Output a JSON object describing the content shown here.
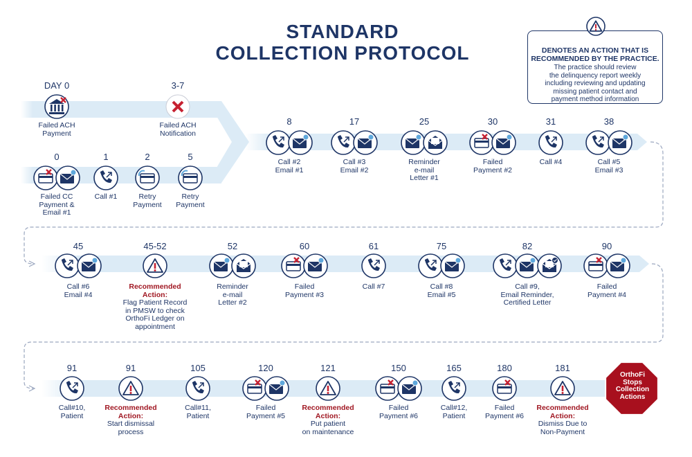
{
  "title": {
    "line1": "STANDARD",
    "line2": "COLLECTION PROTOCOL"
  },
  "legend": {
    "title_line1": "DENOTES AN ACTION THAT IS",
    "title_line2": "RECOMMENDED BY THE PRACTICE.",
    "body": [
      "The practice should review",
      "the delinquency report weekly",
      "including reviewing and updating",
      "missing patient contact and",
      "payment method information"
    ],
    "icon": "warning-icon"
  },
  "colors": {
    "navy": "#1e3566",
    "band": "#dcebf6",
    "recommended": "#a01722",
    "icon_ring": "#1e3566",
    "stop": "#a8101e"
  },
  "ach_path": [
    {
      "day": "DAY 0",
      "icons": [
        "bank-fail-icon"
      ],
      "label": [
        "Failed ACH",
        "Payment"
      ]
    },
    {
      "day": "3-7",
      "icons": [
        "red-x-icon"
      ],
      "label": [
        "Failed ACH",
        "Notification"
      ]
    }
  ],
  "cc_path": [
    {
      "day": "0",
      "icons": [
        "card-fail-icon",
        "email-icon"
      ],
      "label": [
        "Failed CC",
        "Payment &",
        "Email #1"
      ]
    },
    {
      "day": "1",
      "icons": [
        "call-icon"
      ],
      "label": [
        "Call #1"
      ]
    },
    {
      "day": "2",
      "icons": [
        "card-retry-icon"
      ],
      "label": [
        "Retry",
        "Payment"
      ]
    },
    {
      "day": "5",
      "icons": [
        "card-retry-icon"
      ],
      "label": [
        "Retry",
        "Payment"
      ]
    }
  ],
  "row1": [
    {
      "day": "8",
      "icons": [
        "call-icon",
        "email-icon"
      ],
      "label": [
        "Call #2",
        "Email #1"
      ]
    },
    {
      "day": "17",
      "icons": [
        "call-icon",
        "email-icon"
      ],
      "label": [
        "Call #3",
        "Email #2"
      ]
    },
    {
      "day": "25",
      "icons": [
        "email-icon",
        "letter-icon"
      ],
      "label": [
        "Reminder",
        "e-mail",
        "Letter #1"
      ]
    },
    {
      "day": "30",
      "icons": [
        "card-fail-icon",
        "email-icon"
      ],
      "label": [
        "Failed",
        "Payment #2"
      ]
    },
    {
      "day": "31",
      "icons": [
        "call-icon"
      ],
      "label": [
        "Call #4"
      ]
    },
    {
      "day": "38",
      "icons": [
        "call-icon",
        "email-icon"
      ],
      "label": [
        "Call #5",
        "Email #3"
      ]
    }
  ],
  "row2": [
    {
      "day": "45",
      "icons": [
        "call-icon",
        "email-icon"
      ],
      "label": [
        "Call #6",
        "Email #4"
      ]
    },
    {
      "day": "45-52",
      "icons": [
        "warning-icon"
      ],
      "rec": [
        "Recommended",
        "Action:"
      ],
      "label": [
        "Flag Patient Record",
        "in  PMSW to check",
        "OrthoFi Ledger on",
        "appointment"
      ]
    },
    {
      "day": "52",
      "icons": [
        "email-icon",
        "letter-icon"
      ],
      "label": [
        "Reminder",
        "e-mail",
        "Letter #2"
      ]
    },
    {
      "day": "60",
      "icons": [
        "card-fail-icon",
        "email-icon"
      ],
      "label": [
        "Failed",
        "Payment #3"
      ]
    },
    {
      "day": "61",
      "icons": [
        "call-icon"
      ],
      "label": [
        "Call #7"
      ]
    },
    {
      "day": "75",
      "icons": [
        "call-icon",
        "email-icon"
      ],
      "label": [
        "Call #8",
        "Email #5"
      ]
    },
    {
      "day": "82",
      "icons": [
        "call-icon",
        "email-icon",
        "certified-letter-icon"
      ],
      "label": [
        "Call #9,",
        "Email Reminder,",
        "Certified Letter"
      ]
    },
    {
      "day": "90",
      "icons": [
        "card-fail-icon",
        "email-icon"
      ],
      "label": [
        "Failed",
        "Payment #4"
      ]
    }
  ],
  "row3": [
    {
      "day": "91",
      "icons": [
        "call-icon"
      ],
      "label": [
        "Call#10,",
        "Patient"
      ]
    },
    {
      "day": "91",
      "icons": [
        "warning-icon"
      ],
      "rec": [
        "Recommended",
        "Action:"
      ],
      "label": [
        "Start dismissal",
        "process"
      ]
    },
    {
      "day": "105",
      "icons": [
        "call-icon"
      ],
      "label": [
        "Call#11,",
        "Patient"
      ]
    },
    {
      "day": "120",
      "icons": [
        "card-fail-icon",
        "email-icon"
      ],
      "label": [
        "Failed",
        "Payment #5"
      ]
    },
    {
      "day": "121",
      "icons": [
        "warning-icon"
      ],
      "rec": [
        "Recommended",
        "Action:"
      ],
      "label": [
        "Put patient",
        "on maintenance"
      ]
    },
    {
      "day": "150",
      "icons": [
        "card-fail-icon",
        "email-icon"
      ],
      "label": [
        "Failed",
        "Payment #6"
      ]
    },
    {
      "day": "165",
      "icons": [
        "call-icon"
      ],
      "label": [
        "Call#12,",
        "Patient"
      ]
    },
    {
      "day": "180",
      "icons": [
        "card-fail-icon"
      ],
      "label": [
        "Failed",
        "Payment #6"
      ]
    },
    {
      "day": "181",
      "icons": [
        "warning-icon"
      ],
      "rec": [
        "Recommended",
        "Action:"
      ],
      "label": [
        "Dismiss Due to",
        "Non-Payment"
      ]
    }
  ],
  "stop": {
    "lines": [
      "OrthoFi",
      "Stops",
      "Collection",
      "Actions"
    ],
    "icon": "stop-sign-icon"
  }
}
